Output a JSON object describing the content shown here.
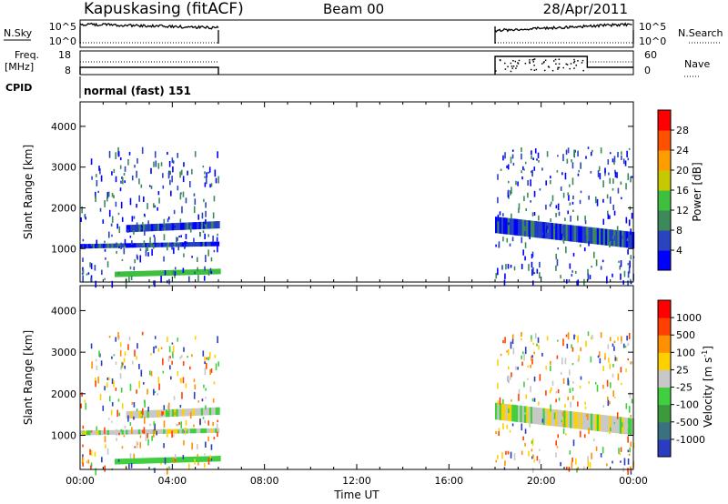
{
  "header": {
    "station": "Kapuskasing (fitACF)",
    "beam": "Beam 00",
    "date": "28/Apr/2011"
  },
  "params": {
    "nsky_label": "N.Sky",
    "nsky_ticks": [
      "10^5",
      "10^0"
    ],
    "nsearch_label": "N.Search",
    "nsearch_ticks": [
      "10^5",
      "10^0"
    ],
    "freq_label": "Freq.",
    "freq_unit": "[MHz]",
    "freq_ticks": [
      "18",
      "8"
    ],
    "nave_label": "Nave",
    "nave_ticks": [
      "60",
      "0"
    ],
    "cpid_label": "CPID",
    "cpid_text": "normal (fast) 151"
  },
  "chart_data": [
    {
      "type": "heatmap",
      "panel": "power",
      "ylabel": "Slant Range [km]",
      "ylim": [
        180,
        4600
      ],
      "yticks": [
        "1000",
        "2000",
        "3000",
        "4000"
      ],
      "xlim_hours": [
        0,
        24
      ],
      "xticks": [
        "00:00",
        "04:00",
        "08:00",
        "12:00",
        "16:00",
        "20:00",
        "00:00"
      ],
      "colorbar": {
        "label": "Power [dB]",
        "ticks": [
          "4",
          "8",
          "12",
          "16",
          "20",
          "24",
          "28"
        ],
        "colors": [
          "#0000ff",
          "#2a44c0",
          "#3c8a5a",
          "#3fbf3f",
          "#c8c800",
          "#ff9c00",
          "#ff5000",
          "#ff0000"
        ]
      },
      "data_windows_hours": [
        [
          0,
          6
        ],
        [
          18,
          24
        ]
      ],
      "echo_bands_km": [
        {
          "hours": [
            0,
            6
          ],
          "range_km": [
            1000,
            1250
          ],
          "level_dB": 6
        },
        {
          "hours": [
            2,
            6
          ],
          "range_km": [
            1400,
            1800
          ],
          "level_dB": 5
        },
        {
          "hours": [
            1.5,
            6
          ],
          "range_km": [
            300,
            600
          ],
          "level_dB": 14
        },
        {
          "hours": [
            18,
            24
          ],
          "range_km": [
            1000,
            1900
          ],
          "level_dB": 6
        }
      ]
    },
    {
      "type": "heatmap",
      "panel": "velocity",
      "ylabel": "Slant Range [km]",
      "xlabel": "Time UT",
      "ylim": [
        180,
        4600
      ],
      "yticks": [
        "1000",
        "2000",
        "3000",
        "4000"
      ],
      "xlim_hours": [
        0,
        24
      ],
      "xticks": [
        "00:00",
        "04:00",
        "08:00",
        "12:00",
        "16:00",
        "20:00",
        "00:00"
      ],
      "colorbar": {
        "label": "Velocity [m s",
        "label_sup": "-1",
        "label_end": "]",
        "ticks": [
          "1000",
          "500",
          "100",
          "25",
          "-25",
          "-100",
          "-500",
          "-1000"
        ],
        "colors": [
          "#2a3cc0",
          "#3a7080",
          "#3c9a3c",
          "#3fcf3f",
          "#c8c8c8",
          "#ffd000",
          "#ff9000",
          "#ff4000",
          "#ff0000"
        ]
      }
    }
  ]
}
